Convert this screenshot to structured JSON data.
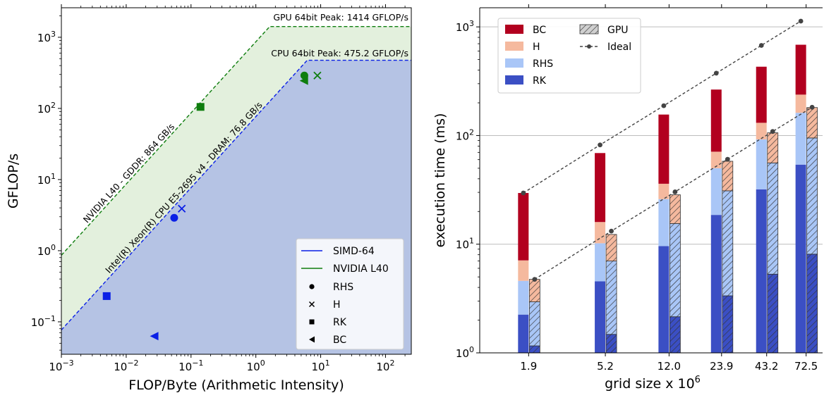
{
  "chart_data": [
    {
      "type": "scatter",
      "subtype": "roofline",
      "xlabel": "FLOP/Byte (Arithmetic Intensity)",
      "ylabel": "GFLOP/s",
      "x_scale": "log",
      "y_scale": "log",
      "xlim": [
        0.001,
        250
      ],
      "ylim": [
        0.035,
        2600
      ],
      "x_ticks": [
        0.001,
        0.01,
        0.1,
        1,
        10,
        100
      ],
      "x_tick_labels": [
        [
          "10",
          "−3"
        ],
        [
          "10",
          "−2"
        ],
        [
          "10",
          "−1"
        ],
        [
          "10",
          "0"
        ],
        [
          "10",
          "1"
        ],
        [
          "10",
          "2"
        ]
      ],
      "y_ticks": [
        0.1,
        1,
        10,
        100,
        1000
      ],
      "y_tick_labels": [
        [
          "10",
          "−1"
        ],
        [
          "10",
          "0"
        ],
        [
          "10",
          "1"
        ],
        [
          "10",
          "2"
        ],
        [
          "10",
          "3"
        ]
      ],
      "grid": false,
      "legend_position": "lower-right",
      "rooflines": [
        {
          "name": "SIMD-64",
          "color": "#0a1fe6",
          "peak_gflops": 475.2,
          "bandwidth_gbs": 76.8,
          "peak_label": "CPU 64bit Peak: 475.2 GFLOP/s",
          "slope_label": "Intel(R) Xeon(R) CPU E5-2695 v4 - DRAM: 76.8 GB/s"
        },
        {
          "name": "NVIDIA L40",
          "color": "#0e7d0e",
          "peak_gflops": 1414,
          "bandwidth_gbs": 864,
          "peak_label": "GPU 64bit Peak: 1414 GFLOP/s",
          "slope_label": "NVIDIA L40 - GDDR: 864 GB/s"
        }
      ],
      "points": [
        {
          "kernel": "RHS",
          "device": "SIMD-64",
          "x": 0.055,
          "y": 2.9
        },
        {
          "kernel": "H",
          "device": "SIMD-64",
          "x": 0.072,
          "y": 3.9
        },
        {
          "kernel": "RK",
          "device": "SIMD-64",
          "x": 0.005,
          "y": 0.23
        },
        {
          "kernel": "BC",
          "device": "SIMD-64",
          "x": 0.027,
          "y": 0.063
        },
        {
          "kernel": "RHS",
          "device": "NVIDIA L40",
          "x": 5.6,
          "y": 290
        },
        {
          "kernel": "H",
          "device": "NVIDIA L40",
          "x": 8.9,
          "y": 290
        },
        {
          "kernel": "RK",
          "device": "NVIDIA L40",
          "x": 0.14,
          "y": 105
        },
        {
          "kernel": "BC",
          "device": "NVIDIA L40",
          "x": 5.5,
          "y": 245
        }
      ],
      "legend": {
        "lines": [
          "SIMD-64",
          "NVIDIA L40"
        ],
        "markers": [
          {
            "label": "RHS",
            "marker": "circle"
          },
          {
            "label": "H",
            "marker": "x"
          },
          {
            "label": "RK",
            "marker": "square"
          },
          {
            "label": "BC",
            "marker": "triangle-left"
          }
        ]
      }
    },
    {
      "type": "bar",
      "subtype": "stacked",
      "xlabel": "grid size x 10",
      "xlabel_superscript": "6",
      "ylabel": "execution time (ms)",
      "y_scale": "log",
      "ylim": [
        1,
        1500
      ],
      "y_ticks": [
        1,
        10,
        100,
        1000
      ],
      "y_tick_labels": [
        [
          "10",
          "0"
        ],
        [
          "10",
          "1"
        ],
        [
          "10",
          "2"
        ],
        [
          "10",
          "3"
        ]
      ],
      "grid": "horizontal",
      "legend_position": "top-left",
      "categories": [
        "1.9",
        "5.2",
        "12.0",
        "23.9",
        "43.2",
        "72.5"
      ],
      "category_values": [
        1.9,
        5.2,
        12.0,
        23.9,
        43.2,
        72.5
      ],
      "stack_order": [
        "RK",
        "RHS",
        "H",
        "BC"
      ],
      "series": [
        {
          "name": "RK",
          "color": "#3b4fc4",
          "cpu": [
            2.25,
            4.55,
            9.6,
            18.6,
            32,
            54
          ],
          "gpu": [
            1.16,
            1.48,
            2.15,
            3.35,
            5.3,
            8.1
          ]
        },
        {
          "name": "RHS",
          "color": "#a9c6f7",
          "cpu": [
            4.6,
            10.2,
            26,
            50,
            92,
            162
          ],
          "gpu": [
            2.95,
            7.0,
            15.5,
            31,
            56,
            95
          ]
        },
        {
          "name": "H",
          "color": "#f5b99e",
          "cpu": [
            7.1,
            16,
            36,
            71,
            131,
            238
          ],
          "gpu": [
            4.75,
            12.3,
            28.5,
            58,
            106,
            181
          ]
        },
        {
          "name": "BC",
          "color": "#b2001f",
          "cpu": [
            29.6,
            69,
            156,
            265,
            430,
            685
          ]
        }
      ],
      "gpu_label": "GPU",
      "ideal": {
        "name": "Ideal",
        "cpu": [
          29.6,
          82,
          188,
          375,
          675,
          1130
        ],
        "gpu": [
          4.75,
          13.2,
          30.3,
          60.5,
          109,
          182
        ]
      }
    }
  ]
}
